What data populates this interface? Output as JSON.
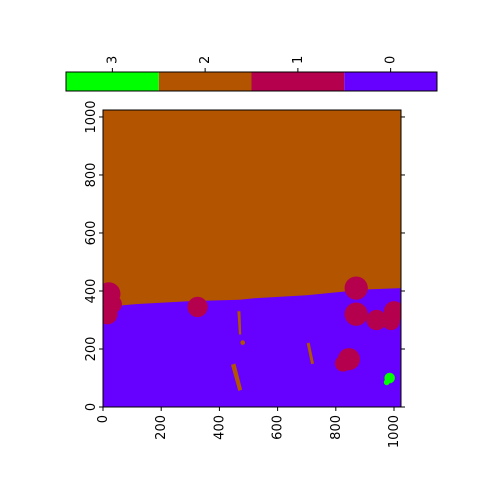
{
  "chart_data": {
    "type": "heatmap",
    "title": "",
    "xlabel": "",
    "ylabel": "",
    "xlim": [
      0,
      1024
    ],
    "ylim": [
      0,
      1024
    ],
    "x_ticks": [
      "0",
      "200",
      "400",
      "600",
      "800",
      "1000"
    ],
    "y_ticks": [
      "0",
      "200",
      "400",
      "600",
      "800",
      "1000"
    ],
    "colorbar": {
      "placement": "top",
      "tick_labels": [
        "0",
        "1",
        "2",
        "3"
      ],
      "classes": [
        {
          "label": "0",
          "color": "#6600ff"
        },
        {
          "label": "1",
          "color": "#b5004d"
        },
        {
          "label": "2",
          "color": "#b35400"
        },
        {
          "label": "3",
          "color": "#00ff00"
        }
      ]
    },
    "regions": [
      {
        "class": 2,
        "kind": "background"
      },
      {
        "class": 0,
        "kind": "polygon",
        "points": [
          [
            0,
            0
          ],
          [
            0,
            345
          ],
          [
            120,
            355
          ],
          [
            300,
            365
          ],
          [
            470,
            370
          ],
          [
            520,
            375
          ],
          [
            700,
            385
          ],
          [
            800,
            395
          ],
          [
            900,
            405
          ],
          [
            1024,
            410
          ],
          [
            1024,
            0
          ]
        ]
      },
      {
        "class": 1,
        "kind": "circle",
        "cx": 20,
        "cy": 390,
        "r": 40
      },
      {
        "class": 1,
        "kind": "circle",
        "cx": 35,
        "cy": 355,
        "r": 30
      },
      {
        "class": 1,
        "kind": "circle",
        "cx": 15,
        "cy": 320,
        "r": 35
      },
      {
        "class": 1,
        "kind": "circle",
        "cx": 325,
        "cy": 345,
        "r": 35
      },
      {
        "class": 1,
        "kind": "circle",
        "cx": 870,
        "cy": 410,
        "r": 40
      },
      {
        "class": 1,
        "kind": "circle",
        "cx": 870,
        "cy": 320,
        "r": 40
      },
      {
        "class": 1,
        "kind": "circle",
        "cx": 940,
        "cy": 300,
        "r": 35
      },
      {
        "class": 1,
        "kind": "circle",
        "cx": 1000,
        "cy": 330,
        "r": 35
      },
      {
        "class": 1,
        "kind": "circle",
        "cx": 990,
        "cy": 295,
        "r": 30
      },
      {
        "class": 1,
        "kind": "circle",
        "cx": 845,
        "cy": 165,
        "r": 38
      },
      {
        "class": 1,
        "kind": "circle",
        "cx": 825,
        "cy": 150,
        "r": 28
      },
      {
        "class": 2,
        "kind": "polygon",
        "points": [
          [
            440,
            145
          ],
          [
            455,
            150
          ],
          [
            478,
            60
          ],
          [
            465,
            55
          ]
        ]
      },
      {
        "class": 2,
        "kind": "polygon",
        "points": [
          [
            462,
            330
          ],
          [
            472,
            330
          ],
          [
            475,
            250
          ],
          [
            467,
            250
          ]
        ]
      },
      {
        "class": 2,
        "kind": "polygon",
        "points": [
          [
            700,
            220
          ],
          [
            710,
            222
          ],
          [
            725,
            150
          ],
          [
            715,
            148
          ]
        ]
      },
      {
        "class": 2,
        "kind": "circle",
        "cx": 480,
        "cy": 222,
        "r": 8
      },
      {
        "class": 3,
        "kind": "circle",
        "cx": 985,
        "cy": 100,
        "r": 18
      },
      {
        "class": 3,
        "kind": "circle",
        "cx": 975,
        "cy": 85,
        "r": 10
      }
    ]
  }
}
